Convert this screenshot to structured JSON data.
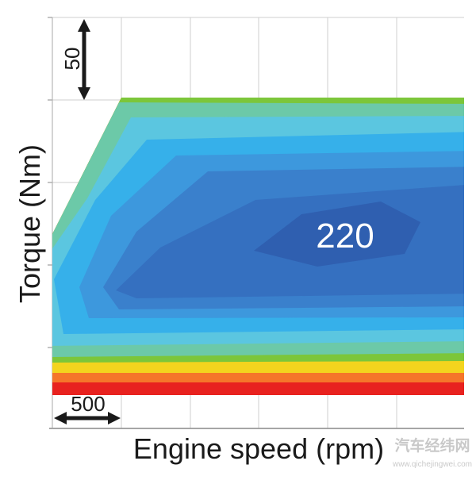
{
  "chart_data": {
    "type": "heatmap",
    "subtype": "contour map",
    "title": "",
    "xlabel": "Engine speed (rpm)",
    "ylabel": "Torque (Nm)",
    "x_scale_bar": {
      "label": "500",
      "value": 500
    },
    "y_scale_bar": {
      "label": "50",
      "value": 50
    },
    "grid": true,
    "annotations": [
      {
        "text": "220",
        "location": "center-right, minimum region"
      }
    ],
    "colors": {
      "low": "#2f5fb0",
      "bands": [
        "#2f5fb0",
        "#3570c0",
        "#3a80cc",
        "#3d98dd",
        "#36b0ea",
        "#5bc6e0",
        "#6cc9a8",
        "#7cc63a",
        "#f3d41e",
        "#f5762a",
        "#e8221f"
      ],
      "high": "#e8221f"
    }
  },
  "watermark": {
    "logo_text": "汽车经纬网",
    "url_text": "www.qichejingwei.com"
  }
}
